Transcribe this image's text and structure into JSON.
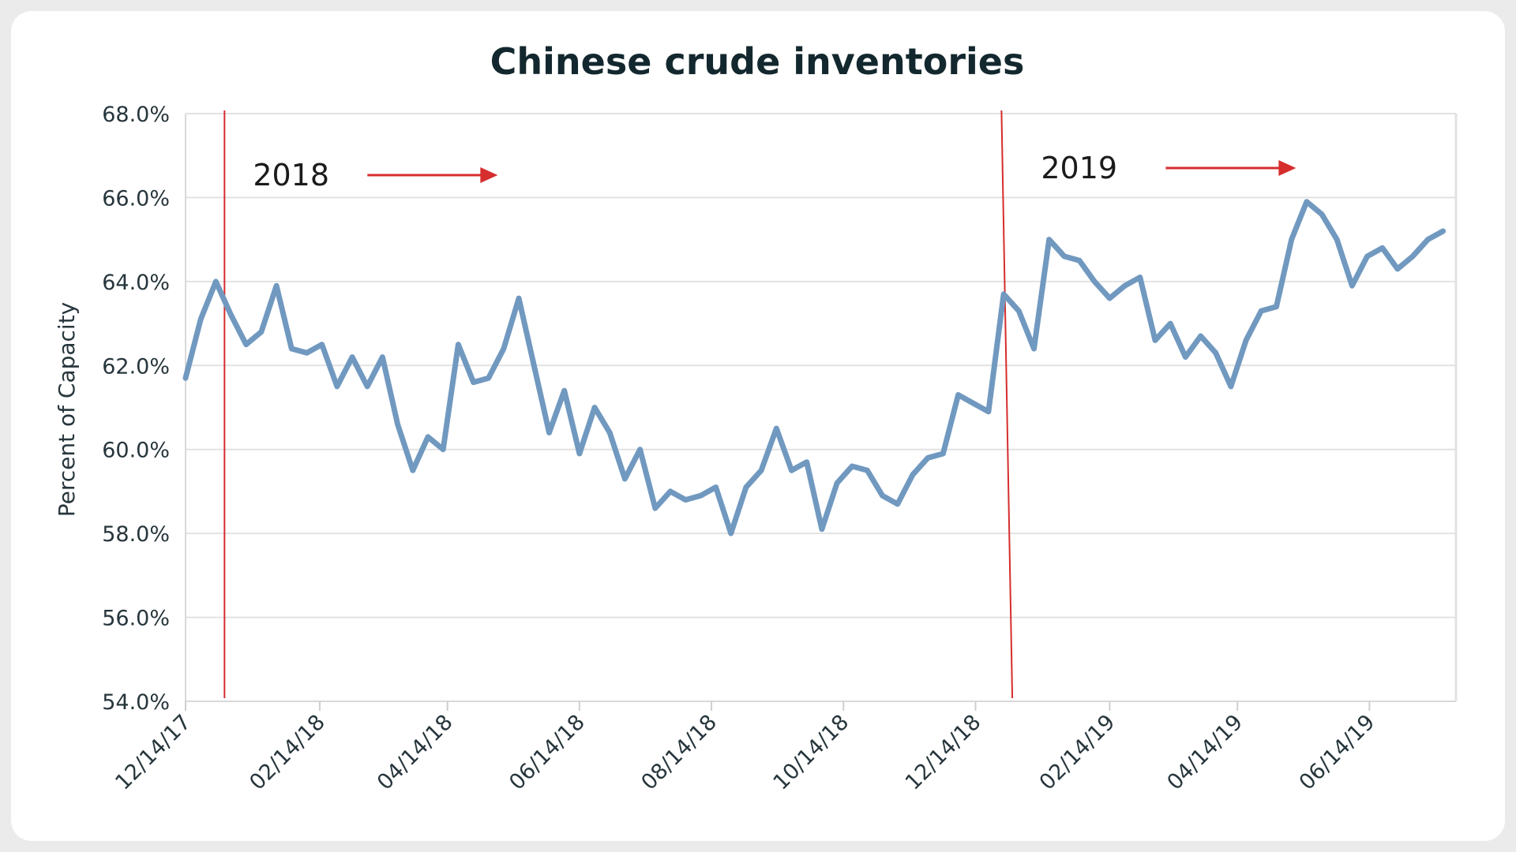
{
  "chart_data": {
    "type": "line",
    "title": "Chinese crude inventories",
    "ylabel": "Percent of Capacity",
    "xlabel": "",
    "ylim": [
      54.0,
      68.0
    ],
    "xlim": [
      "2017-12-14",
      "2019-07-24"
    ],
    "y_ticks": [
      "54.0%",
      "56.0%",
      "58.0%",
      "60.0%",
      "62.0%",
      "64.0%",
      "66.0%",
      "68.0%"
    ],
    "x_ticks": [
      {
        "date": "2017-12-14",
        "label": "12/14/17"
      },
      {
        "date": "2018-02-14",
        "label": "02/14/18"
      },
      {
        "date": "2018-04-14",
        "label": "04/14/18"
      },
      {
        "date": "2018-06-14",
        "label": "06/14/18"
      },
      {
        "date": "2018-08-14",
        "label": "08/14/18"
      },
      {
        "date": "2018-10-14",
        "label": "10/14/18"
      },
      {
        "date": "2018-12-14",
        "label": "12/14/18"
      },
      {
        "date": "2019-02-14",
        "label": "02/14/19"
      },
      {
        "date": "2019-04-14",
        "label": "04/14/19"
      },
      {
        "date": "2019-06-14",
        "label": "06/14/19"
      }
    ],
    "grid": true,
    "series": [
      {
        "color": "#7199c0",
        "points": [
          [
            "2017-12-14",
            61.7
          ],
          [
            "2017-12-21",
            63.1
          ],
          [
            "2017-12-28",
            64.0
          ],
          [
            "2018-01-04",
            63.2
          ],
          [
            "2018-01-11",
            62.5
          ],
          [
            "2018-01-18",
            62.8
          ],
          [
            "2018-01-25",
            63.9
          ],
          [
            "2018-02-01",
            62.4
          ],
          [
            "2018-02-08",
            62.3
          ],
          [
            "2018-02-15",
            62.5
          ],
          [
            "2018-02-22",
            61.5
          ],
          [
            "2018-03-01",
            62.2
          ],
          [
            "2018-03-08",
            61.5
          ],
          [
            "2018-03-15",
            62.2
          ],
          [
            "2018-03-22",
            60.6
          ],
          [
            "2018-03-29",
            59.5
          ],
          [
            "2018-04-05",
            60.3
          ],
          [
            "2018-04-12",
            60.0
          ],
          [
            "2018-04-19",
            62.5
          ],
          [
            "2018-04-26",
            61.6
          ],
          [
            "2018-05-03",
            61.7
          ],
          [
            "2018-05-10",
            62.4
          ],
          [
            "2018-05-17",
            63.6
          ],
          [
            "2018-05-24",
            62.0
          ],
          [
            "2018-05-31",
            60.4
          ],
          [
            "2018-06-07",
            61.4
          ],
          [
            "2018-06-14",
            59.9
          ],
          [
            "2018-06-21",
            61.0
          ],
          [
            "2018-06-28",
            60.4
          ],
          [
            "2018-07-05",
            59.3
          ],
          [
            "2018-07-12",
            60.0
          ],
          [
            "2018-07-19",
            58.6
          ],
          [
            "2018-07-26",
            59.0
          ],
          [
            "2018-08-02",
            58.8
          ],
          [
            "2018-08-09",
            58.9
          ],
          [
            "2018-08-16",
            59.1
          ],
          [
            "2018-08-23",
            58.0
          ],
          [
            "2018-08-30",
            59.1
          ],
          [
            "2018-09-06",
            59.5
          ],
          [
            "2018-09-13",
            60.5
          ],
          [
            "2018-09-20",
            59.5
          ],
          [
            "2018-09-27",
            59.7
          ],
          [
            "2018-10-04",
            58.1
          ],
          [
            "2018-10-11",
            59.2
          ],
          [
            "2018-10-18",
            59.6
          ],
          [
            "2018-10-25",
            59.5
          ],
          [
            "2018-11-01",
            58.9
          ],
          [
            "2018-11-08",
            58.7
          ],
          [
            "2018-11-15",
            59.4
          ],
          [
            "2018-11-22",
            59.8
          ],
          [
            "2018-11-29",
            59.9
          ],
          [
            "2018-12-06",
            61.3
          ],
          [
            "2018-12-13",
            61.1
          ],
          [
            "2018-12-20",
            60.9
          ],
          [
            "2018-12-27",
            63.7
          ],
          [
            "2019-01-03",
            63.3
          ],
          [
            "2019-01-10",
            62.4
          ],
          [
            "2019-01-17",
            65.0
          ],
          [
            "2019-01-24",
            64.6
          ],
          [
            "2019-01-31",
            64.5
          ],
          [
            "2019-02-07",
            64.0
          ],
          [
            "2019-02-14",
            63.6
          ],
          [
            "2019-02-21",
            63.9
          ],
          [
            "2019-02-28",
            64.1
          ],
          [
            "2019-03-07",
            62.6
          ],
          [
            "2019-03-14",
            63.0
          ],
          [
            "2019-03-21",
            62.2
          ],
          [
            "2019-03-28",
            62.7
          ],
          [
            "2019-04-04",
            62.3
          ],
          [
            "2019-04-11",
            61.5
          ],
          [
            "2019-04-18",
            62.6
          ],
          [
            "2019-04-25",
            63.3
          ],
          [
            "2019-05-02",
            63.4
          ],
          [
            "2019-05-09",
            65.0
          ],
          [
            "2019-05-16",
            65.9
          ],
          [
            "2019-05-23",
            65.6
          ],
          [
            "2019-05-30",
            65.0
          ],
          [
            "2019-06-06",
            63.9
          ],
          [
            "2019-06-13",
            64.6
          ],
          [
            "2019-06-20",
            64.8
          ],
          [
            "2019-06-27",
            64.3
          ],
          [
            "2019-07-04",
            64.6
          ],
          [
            "2019-07-11",
            65.0
          ],
          [
            "2019-07-18",
            65.2
          ]
        ]
      }
    ],
    "annotations": [
      {
        "label": "2018",
        "line_date": "2018-01-01",
        "line_date_end": "2018-01-01",
        "line_color": "#d62d2d"
      },
      {
        "label": "2019",
        "line_date": "2018-12-26",
        "line_date_end": "2018-12-31",
        "line_color": "#d62d2d"
      }
    ]
  }
}
